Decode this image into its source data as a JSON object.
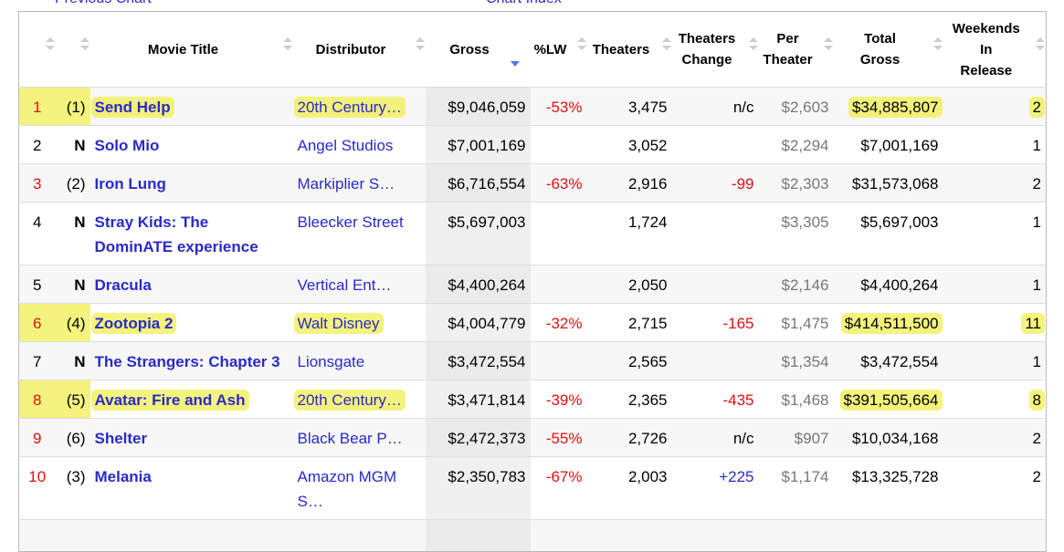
{
  "header": {
    "links": [
      "Previous Chart",
      "Chart Index"
    ]
  },
  "table": {
    "columns": [
      [
        ""
      ],
      [
        ""
      ],
      [
        "Movie Title"
      ],
      [
        "Distributor"
      ],
      [
        "Gross"
      ],
      [
        "%LW"
      ],
      [
        "Theaters"
      ],
      [
        "Theaters",
        "Change"
      ],
      [
        "Per",
        "Theater"
      ],
      [
        "Total",
        "Gross"
      ],
      [
        "Weekends",
        "In",
        "Release"
      ]
    ],
    "sorted_column": 4,
    "highlight_color": "rgba(238,238,70,0.7)",
    "rows": [
      {
        "cells": [
          "1",
          "(1)",
          "Send Help",
          "20th Century…",
          "$9,046,059",
          "-53%",
          "3,475",
          "n/c",
          "$2,603",
          "$34,885,807",
          "2"
        ],
        "highlight": true
      },
      {
        "cells": [
          "2",
          "N",
          "Solo Mio",
          "Angel Studios",
          "$7,001,169",
          null,
          "3,052",
          null,
          "$2,294",
          "$7,001,169",
          "1"
        ],
        "highlight": false
      },
      {
        "cells": [
          "3",
          "(2)",
          "Iron Lung",
          "Markiplier S…",
          "$6,716,554",
          "-63%",
          "2,916",
          "-99",
          "$2,303",
          "$31,573,068",
          "2"
        ],
        "highlight": false
      },
      {
        "cells": [
          "4",
          "N",
          "Stray Kids: The DominATE experience",
          "Bleecker Street",
          "$5,697,003",
          null,
          "1,724",
          null,
          "$3,305",
          "$5,697,003",
          "1"
        ],
        "highlight": false
      },
      {
        "cells": [
          "5",
          "N",
          "Dracula",
          "Vertical Ent…",
          "$4,400,264",
          null,
          "2,050",
          null,
          "$2,146",
          "$4,400,264",
          "1"
        ],
        "highlight": false
      },
      {
        "cells": [
          "6",
          "(4)",
          "Zootopia 2",
          "Walt Disney",
          "$4,004,779",
          "-32%",
          "2,715",
          "-165",
          "$1,475",
          "$414,511,500",
          "11"
        ],
        "highlight": true
      },
      {
        "cells": [
          "7",
          "N",
          "The Strangers: Chapter 3",
          "Lionsgate",
          "$3,472,554",
          null,
          "2,565",
          null,
          "$1,354",
          "$3,472,554",
          "1"
        ],
        "highlight": false
      },
      {
        "cells": [
          "8",
          "(5)",
          "Avatar: Fire and Ash",
          "20th Century…",
          "$3,471,814",
          "-39%",
          "2,365",
          "-435",
          "$1,468",
          "$391,505,664",
          "8"
        ],
        "highlight": true
      },
      {
        "cells": [
          "9",
          "(6)",
          "Shelter",
          "Black Bear P…",
          "$2,472,373",
          "-55%",
          "2,726",
          "n/c",
          "$907",
          "$10,034,168",
          "2"
        ],
        "highlight": false
      },
      {
        "cells": [
          "10",
          "(3)",
          "Melania",
          "Amazon MGM S…",
          "$2,350,783",
          "-67%",
          "2,003",
          "+225",
          "$1,174",
          "$13,325,728",
          "2"
        ],
        "highlight": false
      }
    ]
  }
}
